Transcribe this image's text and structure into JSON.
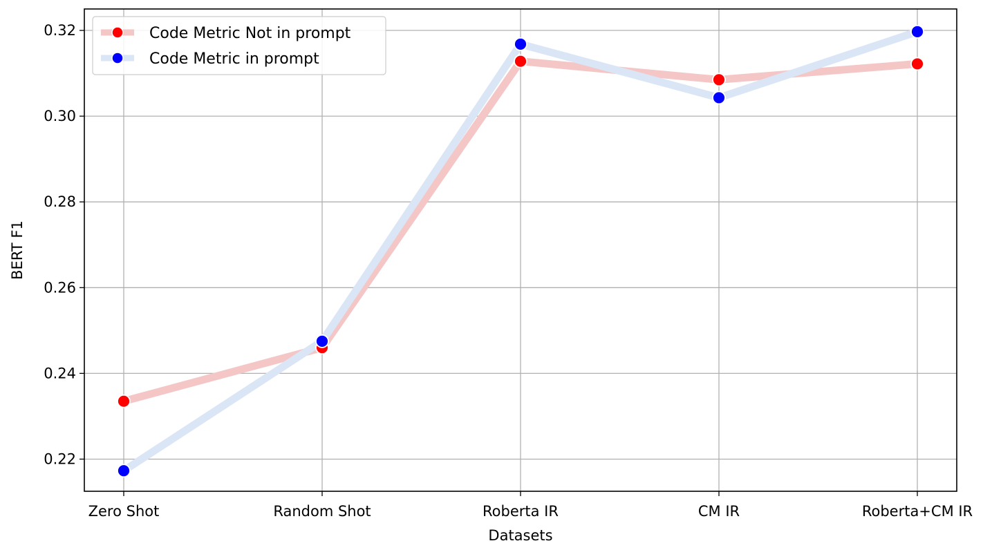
{
  "chart_data": {
    "type": "line",
    "title": "",
    "xlabel": "Datasets",
    "ylabel": "BERT F1",
    "categories": [
      "Zero Shot",
      "Random Shot",
      "Roberta IR",
      "CM IR",
      "Roberta+CM IR"
    ],
    "ylim": [
      0.2125,
      0.325
    ],
    "yticks": [
      "0.22",
      "0.24",
      "0.26",
      "0.28",
      "0.30",
      "0.32"
    ],
    "grid": true,
    "legend_position": "top-left",
    "series": [
      {
        "name": "Code Metric Not in prompt",
        "values": [
          0.2335,
          0.246,
          0.3128,
          0.3085,
          0.3122
        ],
        "line_color": "#f4c6c6",
        "marker_color": "#ff0000"
      },
      {
        "name": "Code Metric in prompt",
        "values": [
          0.2173,
          0.2475,
          0.3168,
          0.3043,
          0.3197
        ],
        "line_color": "#dae6f5",
        "marker_color": "#0000ff"
      }
    ]
  }
}
